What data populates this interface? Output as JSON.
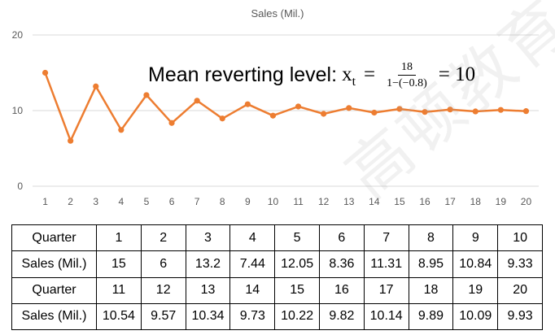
{
  "chart_data": {
    "type": "line",
    "title": "Sales (Mil.)",
    "x": [
      1,
      2,
      3,
      4,
      5,
      6,
      7,
      8,
      9,
      10,
      11,
      12,
      13,
      14,
      15,
      16,
      17,
      18,
      19,
      20
    ],
    "series": [
      {
        "values": [
          15,
          6,
          13.2,
          7.44,
          12.05,
          8.36,
          11.31,
          8.95,
          10.84,
          9.33,
          10.54,
          9.57,
          10.34,
          9.73,
          10.22,
          9.82,
          10.14,
          9.89,
          10.09,
          9.93
        ]
      }
    ],
    "ylim": [
      0,
      20
    ],
    "yticks": [
      "0",
      "10",
      "20"
    ],
    "grid": "horizontal",
    "color": "#ED7D31",
    "annotation": {
      "text": "Mean reverting level:",
      "var": "x",
      "sub": "t",
      "eq": "=",
      "numerator": "18",
      "denominator": "1−(−0.8)",
      "result": "= 10"
    }
  },
  "watermark": "高顿教育",
  "table": {
    "rows": [
      {
        "label": "Quarter",
        "cells": [
          "1",
          "2",
          "3",
          "4",
          "5",
          "6",
          "7",
          "8",
          "9",
          "10"
        ]
      },
      {
        "label": "Sales (Mil.)",
        "cells": [
          "15",
          "6",
          "13.2",
          "7.44",
          "12.05",
          "8.36",
          "11.31",
          "8.95",
          "10.84",
          "9.33"
        ]
      },
      {
        "label": "Quarter",
        "cells": [
          "11",
          "12",
          "13",
          "14",
          "15",
          "16",
          "17",
          "18",
          "19",
          "20"
        ]
      },
      {
        "label": "Sales (Mil.)",
        "cells": [
          "10.54",
          "9.57",
          "10.34",
          "9.73",
          "10.22",
          "9.82",
          "10.14",
          "9.89",
          "10.09",
          "9.93"
        ]
      }
    ]
  }
}
